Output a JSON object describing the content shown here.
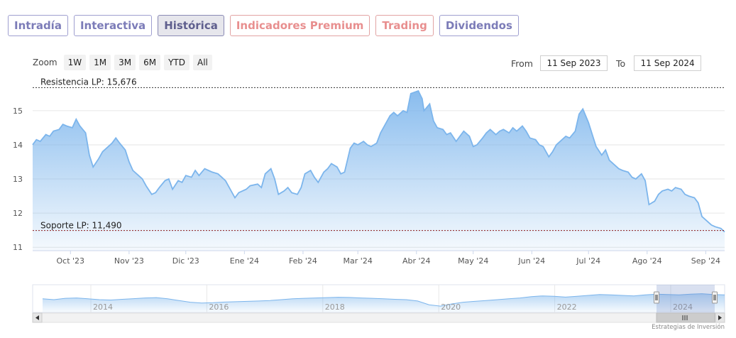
{
  "tabs": [
    {
      "label": "Intradía",
      "active": false,
      "premium": false
    },
    {
      "label": "Interactiva",
      "active": false,
      "premium": false
    },
    {
      "label": "Histórica",
      "active": true,
      "premium": false
    },
    {
      "label": "Indicadores Premium",
      "active": false,
      "premium": true
    },
    {
      "label": "Trading",
      "active": false,
      "premium": true
    },
    {
      "label": "Dividendos",
      "active": false,
      "premium": false
    }
  ],
  "zoom": {
    "label": "Zoom",
    "buttons": [
      "1W",
      "1M",
      "3M",
      "6M",
      "YTD",
      "All"
    ]
  },
  "range": {
    "from_label": "From",
    "from_value": "11 Sep 2023",
    "to_label": "To",
    "to_value": "11 Sep 2024"
  },
  "credit": "Estrategias de Inversión",
  "colors": {
    "line": "#7cb5ec",
    "fill_top": "#7cb5ec",
    "resistance": "#333333",
    "support": "#8b1a1a",
    "tab_border": "#9f9fd0",
    "premium": "#e88f8f"
  },
  "chart_data": {
    "type": "area",
    "x_start": "2023-09-11",
    "x_end": "2024-09-11",
    "ylim": [
      10.9,
      15.85
    ],
    "yticks": [
      11,
      12,
      13,
      14,
      15
    ],
    "ytick_labels": [
      "11",
      "12",
      "13",
      "14",
      "15"
    ],
    "xtick_labels": [
      {
        "date": "2023-10-01",
        "label": "Oct '23"
      },
      {
        "date": "2023-11-01",
        "label": "Nov '23"
      },
      {
        "date": "2023-12-01",
        "label": "Dic '23"
      },
      {
        "date": "2024-01-01",
        "label": "Ene '24"
      },
      {
        "date": "2024-02-01",
        "label": "Feb '24"
      },
      {
        "date": "2024-03-01",
        "label": "Mar '24"
      },
      {
        "date": "2024-04-01",
        "label": "Abr '24"
      },
      {
        "date": "2024-05-01",
        "label": "May '24"
      },
      {
        "date": "2024-06-01",
        "label": "Jun '24"
      },
      {
        "date": "2024-07-01",
        "label": "Jul '24"
      },
      {
        "date": "2024-08-01",
        "label": "Ago '24"
      },
      {
        "date": "2024-09-01",
        "label": "Sep '24"
      }
    ],
    "grid": true,
    "resistance": {
      "label": "Resistencia LP: 15,676",
      "value": 15.676
    },
    "support": {
      "label": "Soporte LP: 11,490",
      "value": 11.49
    },
    "series": [
      {
        "points": [
          [
            "2023-09-11",
            14.0
          ],
          [
            "2023-09-13",
            14.15
          ],
          [
            "2023-09-15",
            14.1
          ],
          [
            "2023-09-18",
            14.3
          ],
          [
            "2023-09-20",
            14.25
          ],
          [
            "2023-09-22",
            14.4
          ],
          [
            "2023-09-25",
            14.45
          ],
          [
            "2023-09-27",
            14.6
          ],
          [
            "2023-09-29",
            14.55
          ],
          [
            "2023-10-02",
            14.5
          ],
          [
            "2023-10-04",
            14.75
          ],
          [
            "2023-10-06",
            14.55
          ],
          [
            "2023-10-09",
            14.35
          ],
          [
            "2023-10-11",
            13.7
          ],
          [
            "2023-10-13",
            13.35
          ],
          [
            "2023-10-16",
            13.6
          ],
          [
            "2023-10-18",
            13.8
          ],
          [
            "2023-10-20",
            13.9
          ],
          [
            "2023-10-23",
            14.05
          ],
          [
            "2023-10-25",
            14.2
          ],
          [
            "2023-10-27",
            14.05
          ],
          [
            "2023-10-30",
            13.85
          ],
          [
            "2023-11-01",
            13.5
          ],
          [
            "2023-11-03",
            13.25
          ],
          [
            "2023-11-06",
            13.1
          ],
          [
            "2023-11-08",
            13.0
          ],
          [
            "2023-11-10",
            12.8
          ],
          [
            "2023-11-13",
            12.55
          ],
          [
            "2023-11-15",
            12.6
          ],
          [
            "2023-11-17",
            12.75
          ],
          [
            "2023-11-20",
            12.95
          ],
          [
            "2023-11-22",
            13.0
          ],
          [
            "2023-11-24",
            12.7
          ],
          [
            "2023-11-27",
            12.95
          ],
          [
            "2023-11-29",
            12.9
          ],
          [
            "2023-12-01",
            13.1
          ],
          [
            "2023-12-04",
            13.05
          ],
          [
            "2023-12-06",
            13.25
          ],
          [
            "2023-12-08",
            13.1
          ],
          [
            "2023-12-11",
            13.3
          ],
          [
            "2023-12-13",
            13.25
          ],
          [
            "2023-12-15",
            13.2
          ],
          [
            "2023-12-18",
            13.15
          ],
          [
            "2023-12-20",
            13.05
          ],
          [
            "2023-12-22",
            12.95
          ],
          [
            "2023-12-27",
            12.45
          ],
          [
            "2023-12-29",
            12.6
          ],
          [
            "2024-01-02",
            12.7
          ],
          [
            "2024-01-04",
            12.8
          ],
          [
            "2024-01-08",
            12.85
          ],
          [
            "2024-01-10",
            12.75
          ],
          [
            "2024-01-12",
            13.15
          ],
          [
            "2024-01-15",
            13.3
          ],
          [
            "2024-01-17",
            13.0
          ],
          [
            "2024-01-19",
            12.55
          ],
          [
            "2024-01-22",
            12.65
          ],
          [
            "2024-01-24",
            12.75
          ],
          [
            "2024-01-26",
            12.6
          ],
          [
            "2024-01-29",
            12.55
          ],
          [
            "2024-01-31",
            12.75
          ],
          [
            "2024-02-02",
            13.15
          ],
          [
            "2024-02-05",
            13.25
          ],
          [
            "2024-02-07",
            13.05
          ],
          [
            "2024-02-09",
            12.9
          ],
          [
            "2024-02-12",
            13.2
          ],
          [
            "2024-02-14",
            13.3
          ],
          [
            "2024-02-16",
            13.45
          ],
          [
            "2024-02-19",
            13.35
          ],
          [
            "2024-02-21",
            13.15
          ],
          [
            "2024-02-23",
            13.2
          ],
          [
            "2024-02-26",
            13.9
          ],
          [
            "2024-02-28",
            14.05
          ],
          [
            "2024-03-01",
            14.0
          ],
          [
            "2024-03-04",
            14.1
          ],
          [
            "2024-03-06",
            14.0
          ],
          [
            "2024-03-08",
            13.95
          ],
          [
            "2024-03-11",
            14.05
          ],
          [
            "2024-03-13",
            14.35
          ],
          [
            "2024-03-15",
            14.55
          ],
          [
            "2024-03-18",
            14.85
          ],
          [
            "2024-03-20",
            14.95
          ],
          [
            "2024-03-22",
            14.85
          ],
          [
            "2024-03-25",
            15.0
          ],
          [
            "2024-03-27",
            14.95
          ],
          [
            "2024-03-29",
            15.5
          ],
          [
            "2024-04-02",
            15.58
          ],
          [
            "2024-04-04",
            15.35
          ],
          [
            "2024-04-05",
            15.0
          ],
          [
            "2024-04-08",
            15.2
          ],
          [
            "2024-04-10",
            14.7
          ],
          [
            "2024-04-12",
            14.5
          ],
          [
            "2024-04-15",
            14.45
          ],
          [
            "2024-04-17",
            14.3
          ],
          [
            "2024-04-19",
            14.35
          ],
          [
            "2024-04-22",
            14.1
          ],
          [
            "2024-04-24",
            14.25
          ],
          [
            "2024-04-26",
            14.4
          ],
          [
            "2024-04-29",
            14.25
          ],
          [
            "2024-05-01",
            13.95
          ],
          [
            "2024-05-03",
            14.0
          ],
          [
            "2024-05-06",
            14.2
          ],
          [
            "2024-05-08",
            14.35
          ],
          [
            "2024-05-10",
            14.45
          ],
          [
            "2024-05-13",
            14.3
          ],
          [
            "2024-05-15",
            14.4
          ],
          [
            "2024-05-17",
            14.45
          ],
          [
            "2024-05-20",
            14.35
          ],
          [
            "2024-05-22",
            14.5
          ],
          [
            "2024-05-24",
            14.4
          ],
          [
            "2024-05-27",
            14.55
          ],
          [
            "2024-05-29",
            14.4
          ],
          [
            "2024-05-31",
            14.2
          ],
          [
            "2024-06-03",
            14.15
          ],
          [
            "2024-06-05",
            14.0
          ],
          [
            "2024-06-07",
            13.95
          ],
          [
            "2024-06-10",
            13.65
          ],
          [
            "2024-06-12",
            13.8
          ],
          [
            "2024-06-14",
            14.0
          ],
          [
            "2024-06-17",
            14.15
          ],
          [
            "2024-06-19",
            14.25
          ],
          [
            "2024-06-21",
            14.2
          ],
          [
            "2024-06-24",
            14.4
          ],
          [
            "2024-06-26",
            14.9
          ],
          [
            "2024-06-28",
            15.05
          ],
          [
            "2024-07-01",
            14.65
          ],
          [
            "2024-07-03",
            14.3
          ],
          [
            "2024-07-05",
            13.95
          ],
          [
            "2024-07-08",
            13.7
          ],
          [
            "2024-07-10",
            13.85
          ],
          [
            "2024-07-12",
            13.55
          ],
          [
            "2024-07-15",
            13.4
          ],
          [
            "2024-07-17",
            13.3
          ],
          [
            "2024-07-19",
            13.25
          ],
          [
            "2024-07-22",
            13.2
          ],
          [
            "2024-07-24",
            13.05
          ],
          [
            "2024-07-26",
            13.0
          ],
          [
            "2024-07-29",
            13.15
          ],
          [
            "2024-07-31",
            12.95
          ],
          [
            "2024-08-02",
            12.25
          ],
          [
            "2024-08-05",
            12.35
          ],
          [
            "2024-08-07",
            12.55
          ],
          [
            "2024-08-09",
            12.65
          ],
          [
            "2024-08-12",
            12.7
          ],
          [
            "2024-08-14",
            12.65
          ],
          [
            "2024-08-16",
            12.75
          ],
          [
            "2024-08-19",
            12.7
          ],
          [
            "2024-08-21",
            12.55
          ],
          [
            "2024-08-23",
            12.5
          ],
          [
            "2024-08-26",
            12.45
          ],
          [
            "2024-08-28",
            12.3
          ],
          [
            "2024-08-30",
            11.9
          ],
          [
            "2024-09-02",
            11.75
          ],
          [
            "2024-09-04",
            11.65
          ],
          [
            "2024-09-06",
            11.6
          ],
          [
            "2024-09-09",
            11.55
          ],
          [
            "2024-09-11",
            11.45
          ]
        ]
      }
    ],
    "navigator": {
      "x_labels": [
        "2014",
        "2016",
        "2018",
        "2020",
        "2022",
        "2024"
      ],
      "values": [
        0.55,
        0.5,
        0.58,
        0.6,
        0.55,
        0.5,
        0.48,
        0.52,
        0.56,
        0.6,
        0.62,
        0.55,
        0.45,
        0.35,
        0.3,
        0.32,
        0.36,
        0.38,
        0.4,
        0.42,
        0.45,
        0.5,
        0.55,
        0.58,
        0.6,
        0.62,
        0.64,
        0.63,
        0.6,
        0.58,
        0.55,
        0.52,
        0.5,
        0.42,
        0.2,
        0.12,
        0.25,
        0.35,
        0.4,
        0.45,
        0.5,
        0.55,
        0.6,
        0.68,
        0.72,
        0.7,
        0.65,
        0.7,
        0.75,
        0.8,
        0.78,
        0.75,
        0.72,
        0.78,
        0.82,
        0.8,
        0.78,
        0.82,
        0.85,
        0.8,
        0.78
      ]
    }
  }
}
